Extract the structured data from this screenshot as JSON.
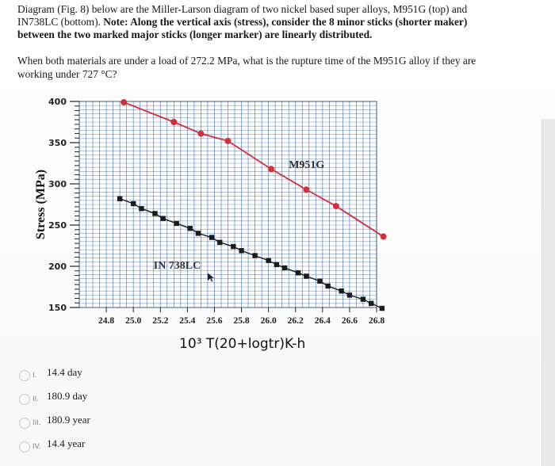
{
  "question": {
    "line1_pre": "Diagram (Fig. 8)  below are the Miller-Larson diagram of two nickel based super alloys, M951G (top) and",
    "line2_pre": "IN738LC (bottom). ",
    "line2_bold": "Note: Along the vertical axis (stress), consider the 8 minor sticks (shorter maker)",
    "line3_bold": "between the two marked major sticks (longer marker) are linearly distributed.",
    "prompt_line1": "When both materials are under a load of 272.2 MPa, what is the rupture time of the M951G alloy if they are",
    "prompt_line2": "working under 727 °C?"
  },
  "chart_data": {
    "type": "line",
    "ylabel": "Stress (MPa)",
    "xlabel": "10³ T(20+logtr)K-h",
    "xlim": [
      24.6,
      26.8
    ],
    "ylim": [
      150,
      400
    ],
    "x_ticks": [
      24.8,
      25.0,
      25.2,
      25.4,
      25.6,
      25.8,
      26.0,
      26.2,
      26.4,
      26.6,
      26.8
    ],
    "x_tick_labels": [
      "24.8",
      "25.0",
      "25.2",
      "25.4",
      "25.6",
      "25.8",
      "26.0",
      "26.2",
      "26.4",
      "26.6",
      "26.8"
    ],
    "y_ticks": [
      150,
      200,
      250,
      300,
      350,
      400
    ],
    "y_tick_labels": [
      "150",
      "200",
      "250",
      "300",
      "350",
      "400"
    ],
    "grid": true,
    "series": [
      {
        "name": "M951G",
        "color": "#d32f3a",
        "marker": "circle",
        "x": [
          24.93,
          25.3,
          25.5,
          25.7,
          26.02,
          26.28,
          26.5,
          26.85
        ],
        "y": [
          399,
          375,
          361,
          352,
          318,
          293,
          273,
          236
        ]
      },
      {
        "name": "IN 738LC",
        "color": "#1c1c1c",
        "marker": "square",
        "x": [
          24.9,
          25.0,
          25.06,
          25.16,
          25.22,
          25.32,
          25.42,
          25.48,
          25.58,
          25.64,
          25.74,
          25.8,
          25.9,
          26.0,
          26.06,
          26.12,
          26.22,
          26.28,
          26.38,
          26.44,
          26.54,
          26.6,
          26.7,
          26.76,
          26.84
        ],
        "y": [
          282,
          276,
          270,
          264,
          258,
          252,
          246,
          240,
          235,
          229,
          224,
          219,
          213,
          207,
          202,
          198,
          192,
          188,
          182,
          176,
          170,
          165,
          160,
          155,
          149
        ]
      }
    ],
    "annotations": [
      {
        "text": "M951G",
        "x": 26.15,
        "y": 319
      },
      {
        "text": "IN 738LC",
        "x": 25.15,
        "y": 197
      }
    ]
  },
  "options": [
    {
      "num": "I.",
      "text": "14.4 day"
    },
    {
      "num": "II.",
      "text": "180.9 day"
    },
    {
      "num": "III.",
      "text": "180.9 year"
    },
    {
      "num": "IV.",
      "text": "14.4 year"
    }
  ],
  "colors": {
    "grid": "#2a5aa8",
    "plot_bg": "#ffffff",
    "axis": "#333333"
  }
}
